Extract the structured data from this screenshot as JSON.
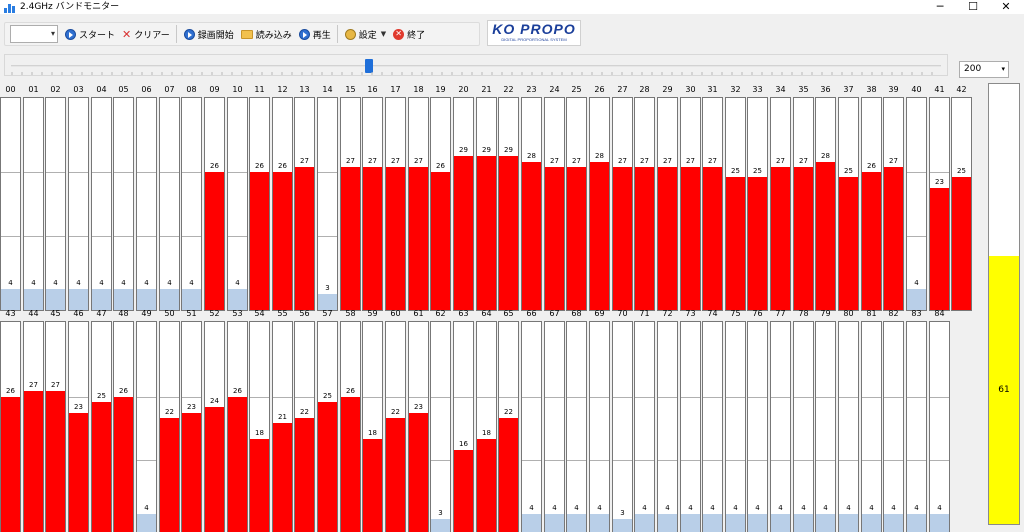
{
  "window": {
    "title": "2.4GHz バンドモニター",
    "minimize_glyph": "─",
    "maximize_glyph": "☐",
    "close_glyph": "✕"
  },
  "toolbar": {
    "combo_value": "",
    "start_label": "スタート",
    "clear_label": "クリアー",
    "record_label": "録画開始",
    "load_label": "読み込み",
    "play_label": "再生",
    "settings_label": "設定",
    "exit_label": "終了",
    "exit_icon_glyph": "✕",
    "clear_icon_glyph": "✕"
  },
  "logo": {
    "main": "KO PROPO",
    "sub": "DIGITAL PROPORTIONAL SYSTEM"
  },
  "slider": {
    "position": 0.384
  },
  "zoom": {
    "value": "200"
  },
  "scale": {
    "max": 40
  },
  "channels_top": [
    {
      "ch": "00",
      "value": 4
    },
    {
      "ch": "01",
      "value": 4
    },
    {
      "ch": "02",
      "value": 4
    },
    {
      "ch": "03",
      "value": 4
    },
    {
      "ch": "04",
      "value": 4
    },
    {
      "ch": "05",
      "value": 4
    },
    {
      "ch": "06",
      "value": 4
    },
    {
      "ch": "07",
      "value": 4
    },
    {
      "ch": "08",
      "value": 4
    },
    {
      "ch": "09",
      "value": 26
    },
    {
      "ch": "10",
      "value": 4
    },
    {
      "ch": "11",
      "value": 26
    },
    {
      "ch": "12",
      "value": 26
    },
    {
      "ch": "13",
      "value": 27
    },
    {
      "ch": "14",
      "value": 3
    },
    {
      "ch": "15",
      "value": 27
    },
    {
      "ch": "16",
      "value": 27
    },
    {
      "ch": "17",
      "value": 27
    },
    {
      "ch": "18",
      "value": 27
    },
    {
      "ch": "19",
      "value": 26
    },
    {
      "ch": "20",
      "value": 29
    },
    {
      "ch": "21",
      "value": 29
    },
    {
      "ch": "22",
      "value": 29
    },
    {
      "ch": "23",
      "value": 28
    },
    {
      "ch": "24",
      "value": 27
    },
    {
      "ch": "25",
      "value": 27
    },
    {
      "ch": "26",
      "value": 28
    },
    {
      "ch": "27",
      "value": 27
    },
    {
      "ch": "28",
      "value": 27
    },
    {
      "ch": "29",
      "value": 27
    },
    {
      "ch": "30",
      "value": 27
    },
    {
      "ch": "31",
      "value": 27
    },
    {
      "ch": "32",
      "value": 25
    },
    {
      "ch": "33",
      "value": 25
    },
    {
      "ch": "34",
      "value": 27
    },
    {
      "ch": "35",
      "value": 27
    },
    {
      "ch": "36",
      "value": 28
    },
    {
      "ch": "37",
      "value": 25
    },
    {
      "ch": "38",
      "value": 26
    },
    {
      "ch": "39",
      "value": 27
    },
    {
      "ch": "40",
      "value": 4
    },
    {
      "ch": "41",
      "value": 23
    },
    {
      "ch": "42",
      "value": 25
    }
  ],
  "channels_bottom": [
    {
      "ch": "43",
      "value": 26
    },
    {
      "ch": "44",
      "value": 27
    },
    {
      "ch": "45",
      "value": 27
    },
    {
      "ch": "46",
      "value": 23
    },
    {
      "ch": "47",
      "value": 25
    },
    {
      "ch": "48",
      "value": 26
    },
    {
      "ch": "49",
      "value": 4
    },
    {
      "ch": "50",
      "value": 22
    },
    {
      "ch": "51",
      "value": 23
    },
    {
      "ch": "52",
      "value": 24
    },
    {
      "ch": "53",
      "value": 26
    },
    {
      "ch": "54",
      "value": 18
    },
    {
      "ch": "55",
      "value": 21
    },
    {
      "ch": "56",
      "value": 22
    },
    {
      "ch": "57",
      "value": 25
    },
    {
      "ch": "58",
      "value": 26
    },
    {
      "ch": "59",
      "value": 18
    },
    {
      "ch": "60",
      "value": 22
    },
    {
      "ch": "61",
      "value": 23
    },
    {
      "ch": "62",
      "value": 3
    },
    {
      "ch": "63",
      "value": 16
    },
    {
      "ch": "64",
      "value": 18
    },
    {
      "ch": "65",
      "value": 22
    },
    {
      "ch": "66",
      "value": 4
    },
    {
      "ch": "67",
      "value": 4
    },
    {
      "ch": "68",
      "value": 4
    },
    {
      "ch": "69",
      "value": 4
    },
    {
      "ch": "70",
      "value": 3
    },
    {
      "ch": "71",
      "value": 4
    },
    {
      "ch": "72",
      "value": 4
    },
    {
      "ch": "73",
      "value": 4
    },
    {
      "ch": "74",
      "value": 4
    },
    {
      "ch": "75",
      "value": 4
    },
    {
      "ch": "76",
      "value": 4
    },
    {
      "ch": "77",
      "value": 4
    },
    {
      "ch": "78",
      "value": 4
    },
    {
      "ch": "79",
      "value": 4
    },
    {
      "ch": "80",
      "value": 4
    },
    {
      "ch": "81",
      "value": 4
    },
    {
      "ch": "82",
      "value": 4
    },
    {
      "ch": "83",
      "value": 4
    },
    {
      "ch": "84",
      "value": 4
    }
  ],
  "meter": {
    "value": 61,
    "max": 100,
    "color": "#ffff00"
  },
  "colors": {
    "active": "#ff0000",
    "idle": "#b9cfe8"
  },
  "icons": {
    "app": "bar-chart-icon",
    "start": "play-circle-icon",
    "clear": "x-icon",
    "record": "record-circle-icon",
    "load": "folder-icon",
    "play": "play-circle-icon",
    "settings": "gear-icon",
    "exit": "stop-icon"
  }
}
